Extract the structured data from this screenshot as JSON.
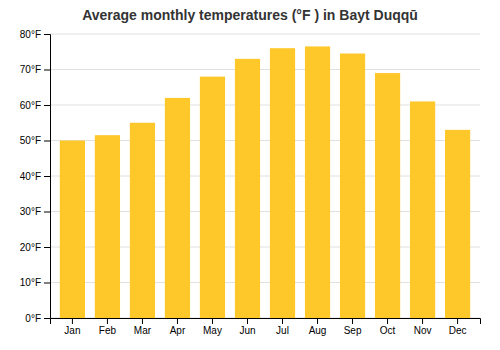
{
  "chart_data": {
    "type": "bar",
    "title": "Average monthly temperatures (°F ) in Bayt Duqqū",
    "categories": [
      "Jan",
      "Feb",
      "Mar",
      "Apr",
      "May",
      "Jun",
      "Jul",
      "Aug",
      "Sep",
      "Oct",
      "Nov",
      "Dec"
    ],
    "values": [
      50,
      51.5,
      55,
      62,
      68,
      73,
      76,
      76.5,
      74.5,
      69,
      61,
      53
    ],
    "color": "#FFC82A",
    "ylim": [
      0,
      80
    ],
    "yticks": [
      {
        "value": 0,
        "label": "0°F"
      },
      {
        "value": 10,
        "label": "10°F"
      },
      {
        "value": 20,
        "label": "20°F"
      },
      {
        "value": 30,
        "label": "30°F"
      },
      {
        "value": 40,
        "label": "40°F"
      },
      {
        "value": 50,
        "label": "50°F"
      },
      {
        "value": 60,
        "label": "60°F"
      },
      {
        "value": 70,
        "label": "70°F"
      },
      {
        "value": 80,
        "label": "80°F"
      }
    ],
    "grid": true
  }
}
